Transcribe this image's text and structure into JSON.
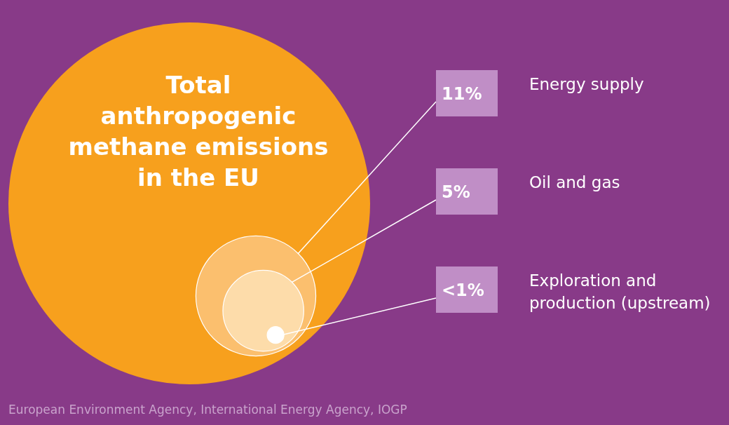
{
  "chart_data": {
    "type": "other",
    "title": "Total anthropogenic methane emissions in the EU",
    "categories": [
      "Energy supply",
      "Oil and gas",
      "Exploration and production (upstream)"
    ],
    "values": [
      11,
      5,
      null
    ],
    "value_labels": [
      "11%",
      "5%",
      "<1%"
    ],
    "annotations": [
      "European Environment Agency, International Energy Agency, IOGP"
    ]
  }
}
